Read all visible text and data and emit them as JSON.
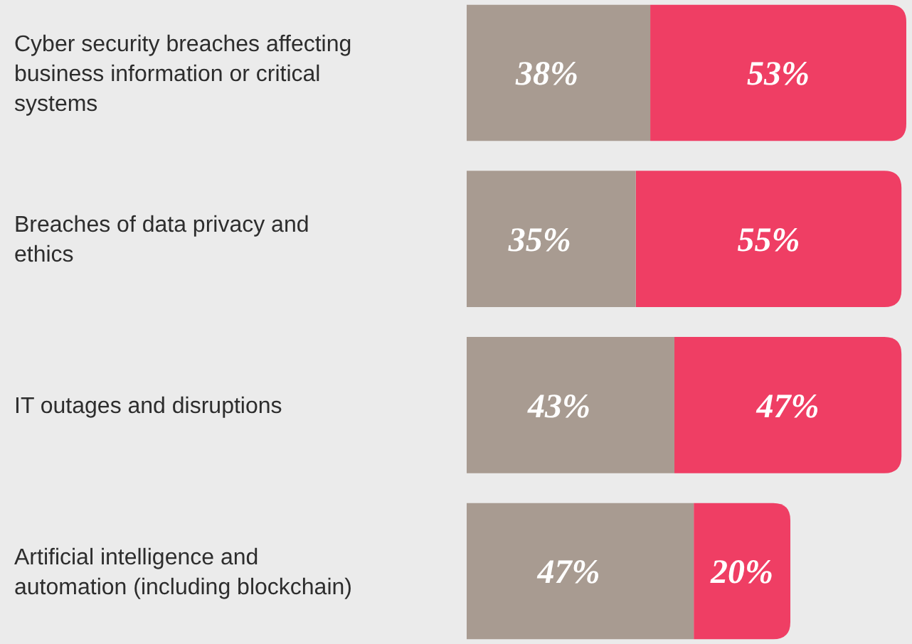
{
  "chart_data": {
    "type": "bar",
    "orientation": "horizontal",
    "stacked": true,
    "tick_labels": "y",
    "categories": [
      "Cyber security breaches affecting business information or critical systems",
      "Breaches of data privacy and ethics",
      "IT outages and disruptions",
      "Artificial intelligence and automation (including blockchain)"
    ],
    "series": [
      {
        "color": "#a89b91",
        "values": [
          38,
          35,
          43,
          47
        ],
        "value_labels": [
          "38%",
          "35%",
          "43%",
          "47%"
        ]
      },
      {
        "color": "#ef3e64",
        "values": [
          53,
          55,
          47,
          20
        ],
        "value_labels": [
          "53%",
          "55%",
          "47%",
          "20%"
        ]
      }
    ]
  }
}
